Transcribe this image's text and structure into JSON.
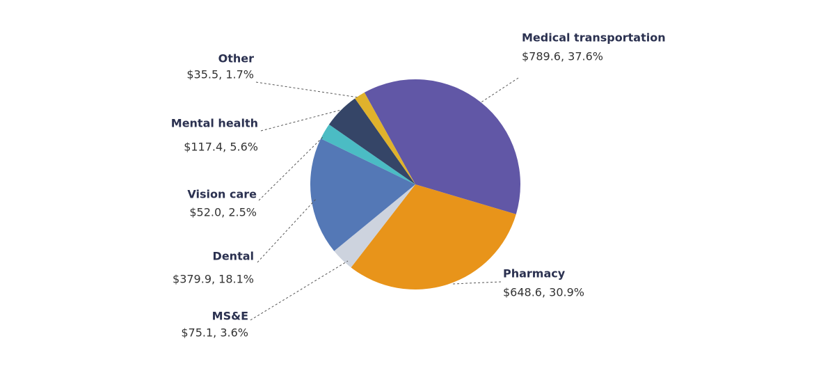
{
  "chart_data": {
    "type": "pie",
    "categories": [
      "Medical transportation",
      "Pharmacy",
      "MS&E",
      "Dental",
      "Vision care",
      "Mental health",
      "Other"
    ],
    "values": [
      789.6,
      648.6,
      75.1,
      379.9,
      52.0,
      117.4,
      35.5
    ],
    "value_labels": [
      "$789.6, 37.6%",
      "$648.6, 30.9%",
      "$75.1, 3.6%",
      "$379.9, 18.1%",
      "$52.0, 2.5%",
      "$117.4, 5.6%",
      "$35.5, 1.7%"
    ],
    "colors": [
      "#6157a6",
      "#e8941a",
      "#cdd3de",
      "#5478b6",
      "#4bbcc4",
      "#354567",
      "#e0b22c"
    ]
  }
}
